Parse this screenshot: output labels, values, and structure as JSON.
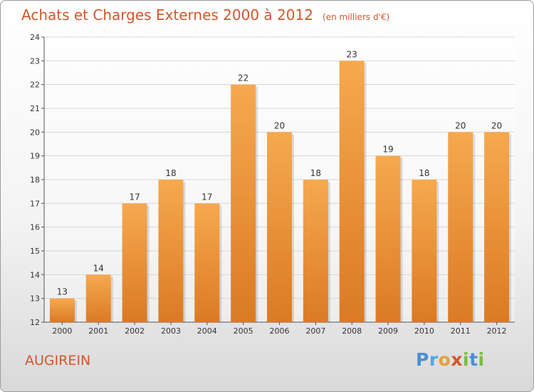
{
  "header": {
    "title": "Achats et Charges Externes 2000 à 2012",
    "unit": "(en milliers d'€)"
  },
  "location": "AUGIREIN",
  "logo": {
    "text": "Proxiti",
    "letters": [
      "P",
      "r",
      "o",
      "x",
      "i",
      "t",
      "i"
    ]
  },
  "colors": {
    "bar_light": "#f6a94f",
    "bar_dark": "#db7a24",
    "title": "#d3562a",
    "grid": "#d6d6d6"
  },
  "chart_data": {
    "type": "bar",
    "title": "Achats et Charges Externes 2000 à 2012",
    "subtitle": "(en milliers d'€)",
    "xlabel": "",
    "ylabel": "",
    "categories": [
      "2000",
      "2001",
      "2002",
      "2003",
      "2004",
      "2005",
      "2006",
      "2007",
      "2008",
      "2009",
      "2010",
      "2011",
      "2012"
    ],
    "values": [
      13,
      14,
      17,
      18,
      17,
      22,
      20,
      18,
      23,
      19,
      18,
      20,
      20
    ],
    "ylim": [
      12,
      24
    ],
    "yticks": [
      12,
      13,
      14,
      15,
      16,
      17,
      18,
      19,
      20,
      21,
      22,
      23,
      24
    ],
    "grid": true,
    "legend": "none"
  }
}
